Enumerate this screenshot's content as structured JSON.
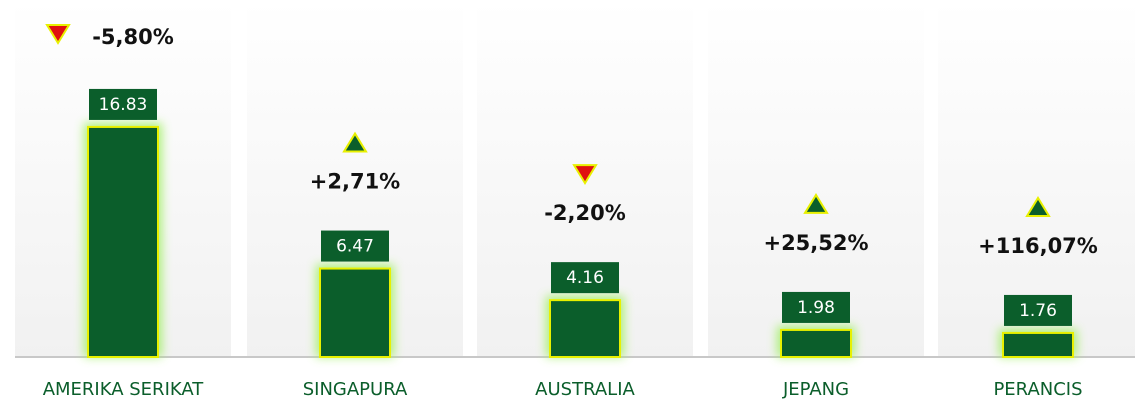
{
  "chart_data": {
    "type": "bar",
    "categories": [
      "AMERIKA SERIKAT",
      "SINGAPURA",
      "AUSTRALIA",
      "JEPANG",
      "PERANCIS"
    ],
    "values": [
      16.83,
      6.47,
      4.16,
      1.98,
      1.76
    ],
    "color": "#0b5e2b",
    "changes": [
      -5.8,
      2.71,
      -2.2,
      25.52,
      116.07
    ],
    "change_labels": [
      "-5,80%",
      "+2,71%",
      "-2,20%",
      "+25,52%",
      "+116,07%"
    ]
  }
}
